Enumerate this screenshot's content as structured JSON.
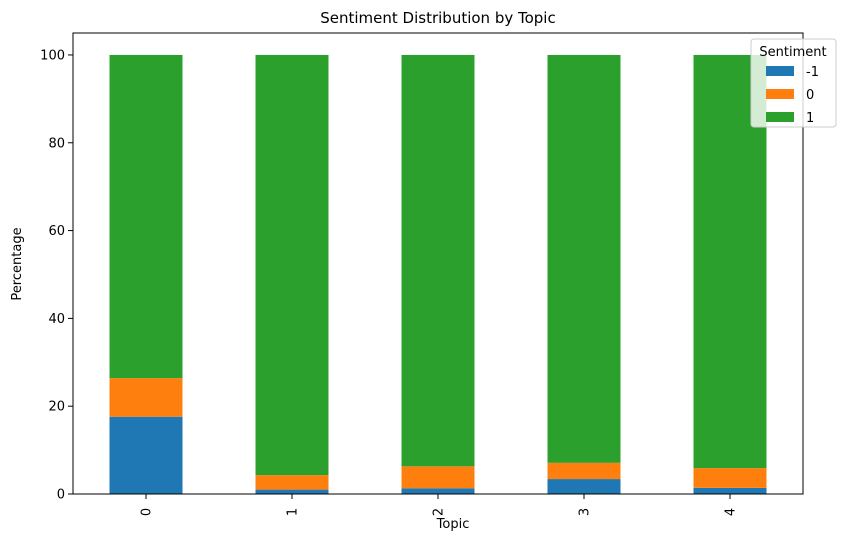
{
  "chart_data": {
    "type": "bar",
    "stacked": true,
    "title": "Sentiment Distribution by Topic",
    "xlabel": "Topic",
    "ylabel": "Percentage",
    "categories": [
      "0",
      "1",
      "2",
      "3",
      "4"
    ],
    "ylim": [
      0,
      105
    ],
    "yticks": [
      0,
      20,
      40,
      60,
      80,
      100
    ],
    "grid": false,
    "legend": {
      "title": "Sentiment",
      "placement": "top-right"
    },
    "series": [
      {
        "name": "-1",
        "color": "#1f77b4",
        "values": [
          17.6,
          1.0,
          1.3,
          3.4,
          1.4
        ]
      },
      {
        "name": "0",
        "color": "#ff7f0e",
        "values": [
          8.8,
          3.3,
          5.0,
          3.7,
          4.5
        ]
      },
      {
        "name": "1",
        "color": "#2ca02c",
        "values": [
          73.6,
          95.7,
          93.7,
          92.9,
          94.1
        ]
      }
    ]
  }
}
